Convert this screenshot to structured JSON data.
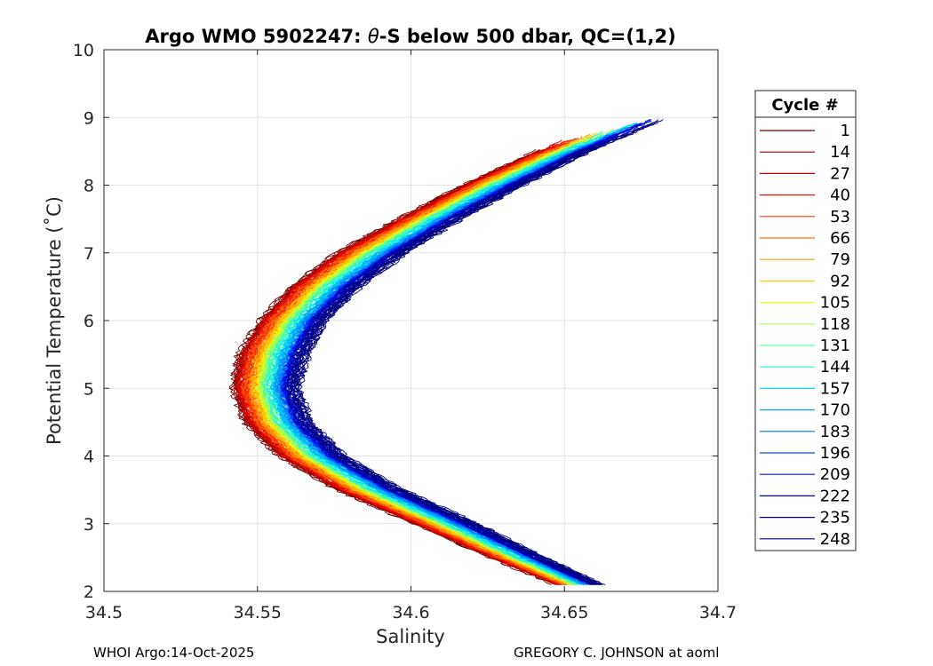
{
  "chart_data": {
    "type": "line",
    "title_parts": [
      "Argo WMO 5902247: ",
      "θ",
      "-S below 500 dbar,  QC=(1,2)"
    ],
    "xlabel": "Salinity",
    "ylabel": "Potential Temperature (˚C)",
    "xlim": [
      34.5,
      34.7
    ],
    "ylim": [
      2,
      10
    ],
    "x_ticks": [
      34.5,
      34.55,
      34.6,
      34.65,
      34.7
    ],
    "x_tick_labels": [
      "34.5",
      "34.55",
      "34.6",
      "34.65",
      "34.7"
    ],
    "y_ticks": [
      2,
      3,
      4,
      5,
      6,
      7,
      8,
      9,
      10
    ],
    "y_tick_labels": [
      "2",
      "3",
      "4",
      "5",
      "6",
      "7",
      "8",
      "9",
      "10"
    ],
    "grid": true,
    "legend_title": "Cycle #",
    "legend_position": "outside-right",
    "series": [
      {
        "name": "1",
        "color": "#6e0000"
      },
      {
        "name": "14",
        "color": "#9b0000"
      },
      {
        "name": "27",
        "color": "#c80000"
      },
      {
        "name": "40",
        "color": "#ee1000"
      },
      {
        "name": "53",
        "color": "#ff3a00"
      },
      {
        "name": "66",
        "color": "#ff6a00"
      },
      {
        "name": "79",
        "color": "#ff9b00"
      },
      {
        "name": "92",
        "color": "#ffd000"
      },
      {
        "name": "105",
        "color": "#e8ff10"
      },
      {
        "name": "118",
        "color": "#a8ff50"
      },
      {
        "name": "131",
        "color": "#60ff98"
      },
      {
        "name": "144",
        "color": "#20f8d8"
      },
      {
        "name": "157",
        "color": "#00d8ff"
      },
      {
        "name": "170",
        "color": "#00a8ff"
      },
      {
        "name": "183",
        "color": "#0070ff"
      },
      {
        "name": "196",
        "color": "#0040ff"
      },
      {
        "name": "209",
        "color": "#0010e8"
      },
      {
        "name": "222",
        "color": "#0000b8"
      },
      {
        "name": "235",
        "color": "#000090"
      },
      {
        "name": "248",
        "color": "#00007a"
      }
    ],
    "profile_envelope": {
      "theta": [
        2.1,
        2.5,
        3,
        3.5,
        4,
        4.5,
        5,
        5.5,
        6,
        6.5,
        7,
        7.5,
        8,
        8.5,
        9
      ],
      "salinity_red_edge": [
        34.647,
        34.626,
        34.601,
        34.576,
        34.557,
        34.546,
        34.542,
        34.544,
        34.551,
        34.561,
        34.576,
        34.596,
        34.617,
        34.641,
        34.665
      ],
      "salinity_blue_edge": [
        34.662,
        34.643,
        34.621,
        34.597,
        34.578,
        34.567,
        34.563,
        34.566,
        34.572,
        34.583,
        34.598,
        34.616,
        34.636,
        34.658,
        34.684
      ]
    }
  },
  "footer": {
    "left": "WHOI Argo:14-Oct-2025",
    "right": "GREGORY C. JOHNSON at aoml"
  }
}
